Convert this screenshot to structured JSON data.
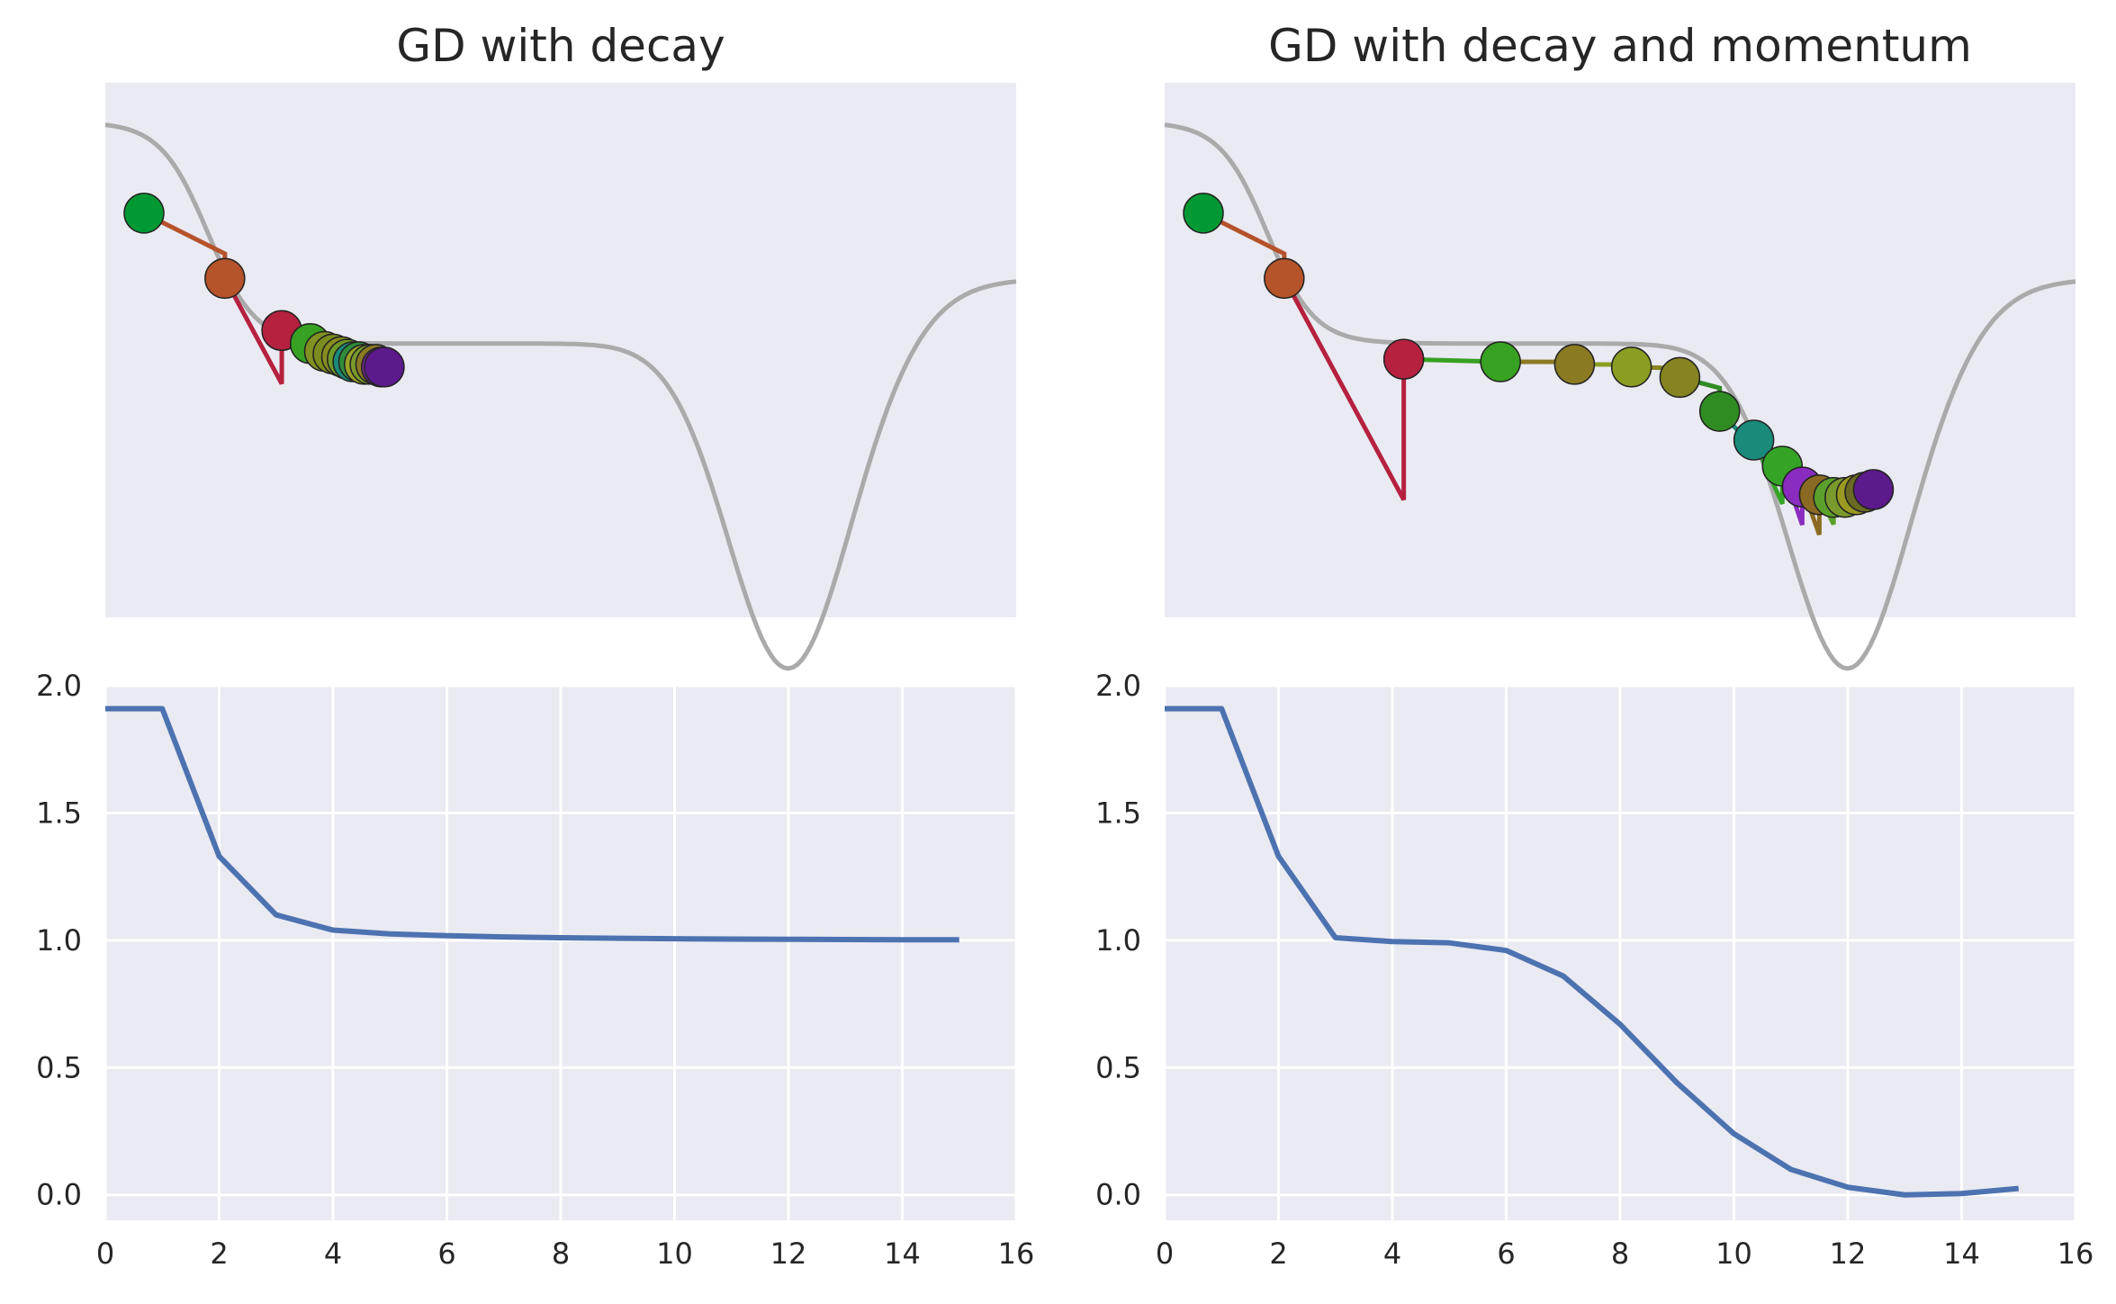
{
  "chart_data": [
    {
      "type": "line",
      "title": "GD with decay",
      "description_panel": "trajectory",
      "x": [
        0.68,
        2.1,
        3.1,
        3.6,
        3.85,
        4.0,
        4.15,
        4.25,
        4.35,
        4.45,
        4.55,
        4.65,
        4.75,
        4.85,
        4.9
      ],
      "y": [
        1.0,
        0.75,
        0.55,
        0.5,
        0.47,
        0.46,
        0.45,
        0.44,
        0.43,
        0.43,
        0.42,
        0.42,
        0.42,
        0.41,
        0.41
      ],
      "colors": [
        "#009933",
        "#b5532a",
        "#b5213f",
        "#37a121",
        "#829122",
        "#7d8c1e",
        "#898d20",
        "#6e9a25",
        "#1a8a7a",
        "#2f8c3a",
        "#99a326",
        "#7a9a2c",
        "#8a7a22",
        "#7a2a9c",
        "#5c1a8c"
      ]
    },
    {
      "type": "line",
      "title": "",
      "description_panel": "loss",
      "x": [
        0,
        1,
        2,
        3,
        4,
        5,
        6,
        7,
        8,
        9,
        10,
        11,
        12,
        13,
        14,
        15
      ],
      "y": [
        1.91,
        1.91,
        1.33,
        1.1,
        1.04,
        1.025,
        1.018,
        1.013,
        1.01,
        1.008,
        1.006,
        1.005,
        1.004,
        1.003,
        1.002,
        1.002
      ],
      "xlim": [
        0,
        16
      ],
      "ylim": [
        -0.1,
        2.0
      ],
      "xticks": [
        "0",
        "2",
        "4",
        "6",
        "8",
        "10",
        "12",
        "14",
        "16"
      ],
      "yticks": [
        "0.0",
        "0.5",
        "1.0",
        "1.5",
        "2.0"
      ],
      "color": "#4c72b0",
      "grid": true
    },
    {
      "type": "line",
      "title": "GD with decay and momentum",
      "description_panel": "trajectory",
      "x": [
        0.68,
        2.1,
        4.2,
        5.9,
        7.2,
        8.2,
        9.05,
        9.75,
        10.35,
        10.85,
        11.2,
        11.5,
        11.75,
        11.95,
        12.15,
        12.3,
        12.45
      ],
      "y": [
        1.0,
        0.75,
        0.44,
        0.43,
        0.42,
        0.41,
        0.37,
        0.24,
        0.13,
        0.03,
        -0.05,
        -0.08,
        -0.09,
        -0.09,
        -0.08,
        -0.07,
        -0.06
      ],
      "colors": [
        "#009933",
        "#b5532a",
        "#b5213f",
        "#37a121",
        "#8a7a22",
        "#8c9e22",
        "#868420",
        "#2f8c22",
        "#1a8a7a",
        "#35a326",
        "#8a2cc0",
        "#8a6a22",
        "#5aa02a",
        "#7a9a2c",
        "#9a9a22",
        "#6a6a22",
        "#5c1a8c"
      ]
    },
    {
      "type": "line",
      "title": "",
      "description_panel": "loss",
      "x": [
        0,
        1,
        2,
        3,
        4,
        5,
        6,
        7,
        8,
        9,
        10,
        11,
        12,
        13,
        14,
        15
      ],
      "y": [
        1.91,
        1.91,
        1.33,
        1.01,
        0.995,
        0.99,
        0.96,
        0.86,
        0.67,
        0.44,
        0.24,
        0.1,
        0.03,
        0.0,
        0.005,
        0.025
      ],
      "xlim": [
        0,
        16
      ],
      "ylim": [
        -0.1,
        2.0
      ],
      "xticks": [
        "0",
        "2",
        "4",
        "6",
        "8",
        "10",
        "12",
        "14",
        "16"
      ],
      "yticks": [
        "0.0",
        "0.5",
        "1.0",
        "1.5",
        "2.0"
      ],
      "color": "#4c72b0",
      "grid": true
    }
  ],
  "landscape": {
    "color": "#aaaaaa",
    "x_range": [
      0,
      16
    ]
  }
}
